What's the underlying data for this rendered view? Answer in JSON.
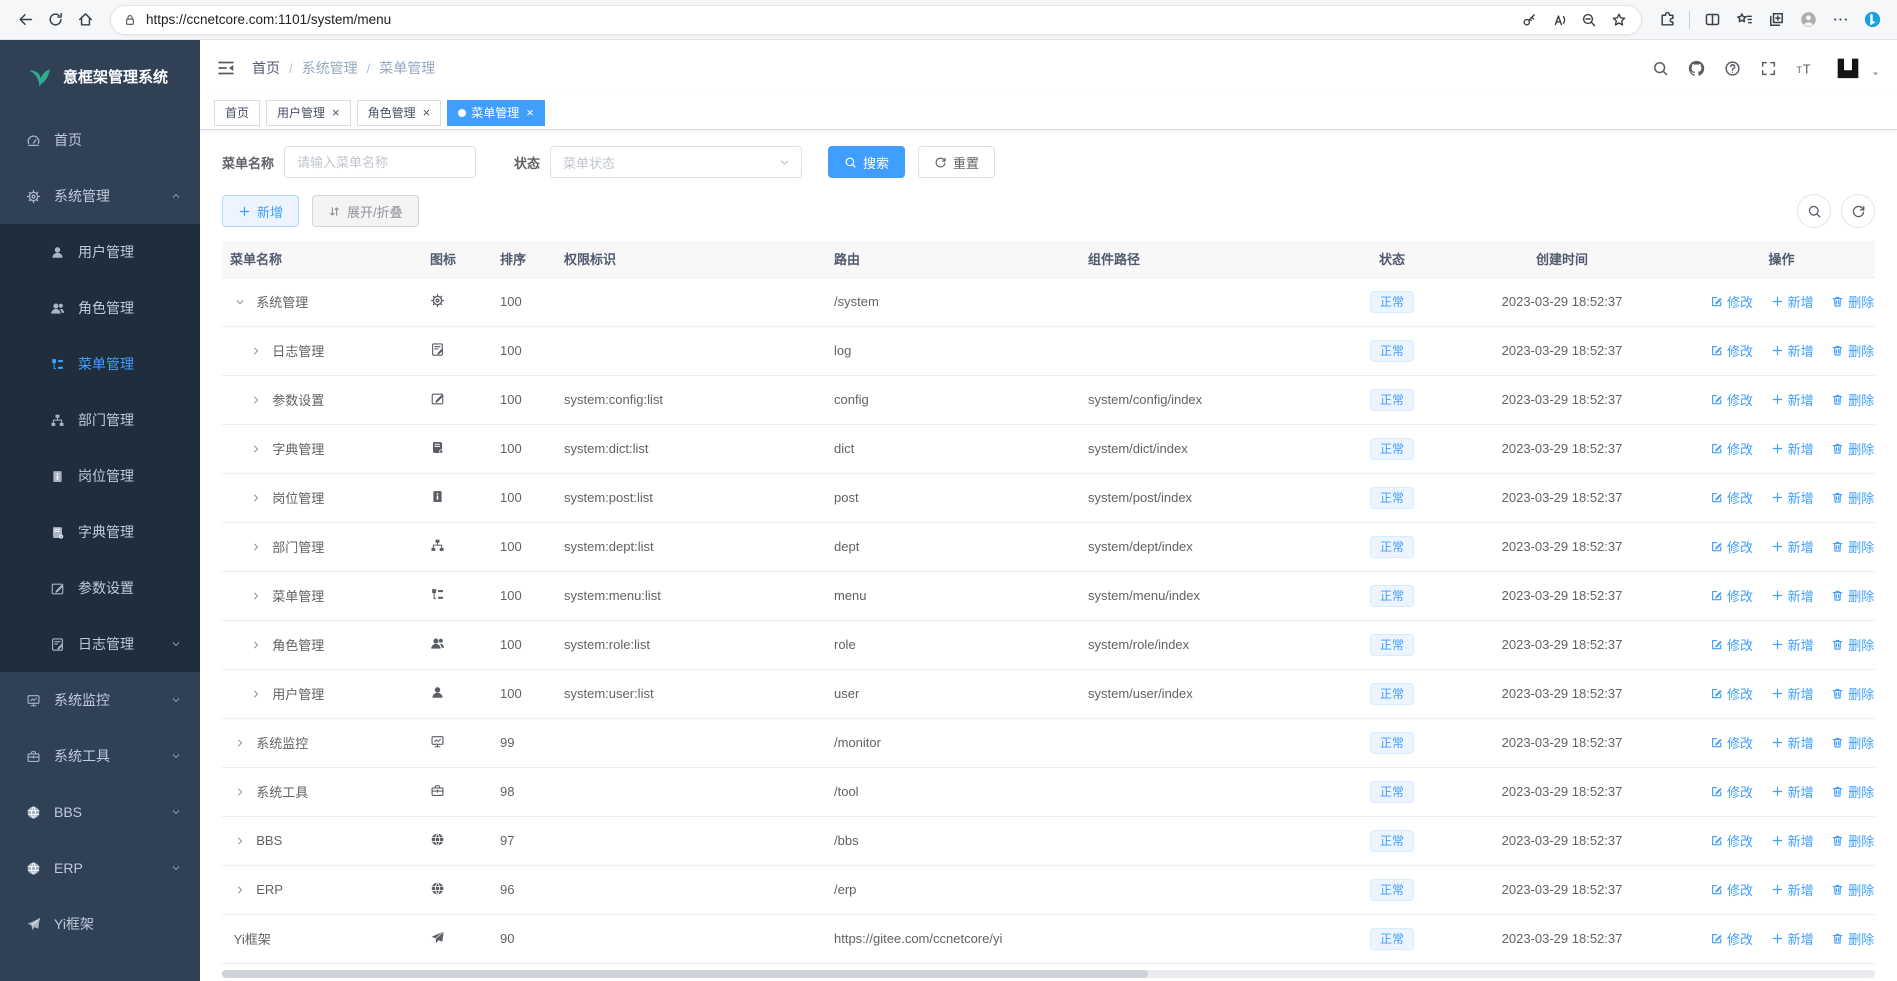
{
  "browser": {
    "url": "https://ccnetcore.com:1101/system/menu",
    "nav_icons": [
      "back",
      "reload",
      "home"
    ],
    "addr_icons": [
      "key",
      "read-aloud",
      "zoom-out",
      "favorite-add"
    ],
    "toolbar_icons": [
      "extensions",
      "divider",
      "split-screen",
      "favorites",
      "collections",
      "profile",
      "more",
      "bing"
    ]
  },
  "sidebar": {
    "title": "意框架管理系统",
    "items": [
      {
        "label": "首页",
        "icon": "dashboard",
        "level": 1,
        "caret": null,
        "active": false
      },
      {
        "label": "系统管理",
        "icon": "gear",
        "level": 1,
        "caret": "up",
        "active": false
      },
      {
        "label": "用户管理",
        "icon": "user",
        "level": 2,
        "caret": null,
        "active": false
      },
      {
        "label": "角色管理",
        "icon": "users",
        "level": 2,
        "caret": null,
        "active": false
      },
      {
        "label": "菜单管理",
        "icon": "menu",
        "level": 2,
        "caret": null,
        "active": true
      },
      {
        "label": "部门管理",
        "icon": "tree",
        "level": 2,
        "caret": null,
        "active": false
      },
      {
        "label": "岗位管理",
        "icon": "badge",
        "level": 2,
        "caret": null,
        "active": false
      },
      {
        "label": "字典管理",
        "icon": "book",
        "level": 2,
        "caret": null,
        "active": false
      },
      {
        "label": "参数设置",
        "icon": "edit",
        "level": 2,
        "caret": null,
        "active": false
      },
      {
        "label": "日志管理",
        "icon": "log",
        "level": 2,
        "caret": "down",
        "active": false
      },
      {
        "label": "系统监控",
        "icon": "monitor",
        "level": 1,
        "caret": "down",
        "active": false
      },
      {
        "label": "系统工具",
        "icon": "toolbox",
        "level": 1,
        "caret": "down",
        "active": false
      },
      {
        "label": "BBS",
        "icon": "globe",
        "level": 1,
        "caret": "down",
        "active": false
      },
      {
        "label": "ERP",
        "icon": "globe",
        "level": 1,
        "caret": "down",
        "active": false
      },
      {
        "label": "Yi框架",
        "icon": "send",
        "level": 1,
        "caret": null,
        "active": false
      }
    ]
  },
  "header": {
    "breadcrumb": [
      "首页",
      "系统管理",
      "菜单管理"
    ],
    "separator": "/",
    "action_icons": [
      "search",
      "github",
      "question",
      "fullscreen",
      "font-size"
    ]
  },
  "tabs": [
    {
      "label": "首页",
      "closable": false,
      "active": false
    },
    {
      "label": "用户管理",
      "closable": true,
      "active": false
    },
    {
      "label": "角色管理",
      "closable": true,
      "active": false
    },
    {
      "label": "菜单管理",
      "closable": true,
      "active": true
    }
  ],
  "filters": {
    "name_label": "菜单名称",
    "name_placeholder": "请输入菜单名称",
    "status_label": "状态",
    "status_placeholder": "菜单状态",
    "search_label": "搜索",
    "reset_label": "重置"
  },
  "toolbar": {
    "add_label": "新增",
    "toggle_label": "展开/折叠"
  },
  "table": {
    "columns": [
      {
        "label": "菜单名称",
        "align": "left"
      },
      {
        "label": "图标",
        "align": "left"
      },
      {
        "label": "排序",
        "align": "left"
      },
      {
        "label": "权限标识",
        "align": "left"
      },
      {
        "label": "路由",
        "align": "left"
      },
      {
        "label": "组件路径",
        "align": "left"
      },
      {
        "label": "状态",
        "align": "center"
      },
      {
        "label": "创建时间",
        "align": "center"
      },
      {
        "label": "操作",
        "align": "center"
      }
    ],
    "actions": {
      "edit": "修改",
      "add": "新增",
      "delete": "删除"
    },
    "rows": [
      {
        "name": "系统管理",
        "icon": "gear",
        "level": 0,
        "arrow": "down",
        "sort": "100",
        "perm": "",
        "route": "/system",
        "component": "",
        "status": "正常",
        "created": "2023-03-29 18:52:37"
      },
      {
        "name": "日志管理",
        "icon": "log",
        "level": 1,
        "arrow": "right",
        "sort": "100",
        "perm": "",
        "route": "log",
        "component": "",
        "status": "正常",
        "created": "2023-03-29 18:52:37"
      },
      {
        "name": "参数设置",
        "icon": "edit",
        "level": 1,
        "arrow": "right",
        "sort": "100",
        "perm": "system:config:list",
        "route": "config",
        "component": "system/config/index",
        "status": "正常",
        "created": "2023-03-29 18:52:37"
      },
      {
        "name": "字典管理",
        "icon": "book",
        "level": 1,
        "arrow": "right",
        "sort": "100",
        "perm": "system:dict:list",
        "route": "dict",
        "component": "system/dict/index",
        "status": "正常",
        "created": "2023-03-29 18:52:37"
      },
      {
        "name": "岗位管理",
        "icon": "badge",
        "level": 1,
        "arrow": "right",
        "sort": "100",
        "perm": "system:post:list",
        "route": "post",
        "component": "system/post/index",
        "status": "正常",
        "created": "2023-03-29 18:52:37"
      },
      {
        "name": "部门管理",
        "icon": "tree",
        "level": 1,
        "arrow": "right",
        "sort": "100",
        "perm": "system:dept:list",
        "route": "dept",
        "component": "system/dept/index",
        "status": "正常",
        "created": "2023-03-29 18:52:37"
      },
      {
        "name": "菜单管理",
        "icon": "menu",
        "level": 1,
        "arrow": "right",
        "sort": "100",
        "perm": "system:menu:list",
        "route": "menu",
        "component": "system/menu/index",
        "status": "正常",
        "created": "2023-03-29 18:52:37"
      },
      {
        "name": "角色管理",
        "icon": "users",
        "level": 1,
        "arrow": "right",
        "sort": "100",
        "perm": "system:role:list",
        "route": "role",
        "component": "system/role/index",
        "status": "正常",
        "created": "2023-03-29 18:52:37"
      },
      {
        "name": "用户管理",
        "icon": "user",
        "level": 1,
        "arrow": "right",
        "sort": "100",
        "perm": "system:user:list",
        "route": "user",
        "component": "system/user/index",
        "status": "正常",
        "created": "2023-03-29 18:52:37"
      },
      {
        "name": "系统监控",
        "icon": "monitor",
        "level": 0,
        "arrow": "right",
        "sort": "99",
        "perm": "",
        "route": "/monitor",
        "component": "",
        "status": "正常",
        "created": "2023-03-29 18:52:37"
      },
      {
        "name": "系统工具",
        "icon": "toolbox",
        "level": 0,
        "arrow": "right",
        "sort": "98",
        "perm": "",
        "route": "/tool",
        "component": "",
        "status": "正常",
        "created": "2023-03-29 18:52:37"
      },
      {
        "name": "BBS",
        "icon": "globe",
        "level": 0,
        "arrow": "right",
        "sort": "97",
        "perm": "",
        "route": "/bbs",
        "component": "",
        "status": "正常",
        "created": "2023-03-29 18:52:37"
      },
      {
        "name": "ERP",
        "icon": "globe",
        "level": 0,
        "arrow": "right",
        "sort": "96",
        "perm": "",
        "route": "/erp",
        "component": "",
        "status": "正常",
        "created": "2023-03-29 18:52:37"
      },
      {
        "name": "Yi框架",
        "icon": "send",
        "level": 0,
        "arrow": "none",
        "sort": "90",
        "perm": "",
        "route": "https://gitee.com/ccnetcore/yi",
        "component": "",
        "status": "正常",
        "created": "2023-03-29 18:52:37"
      }
    ]
  },
  "colors": {
    "primary": "#409eff",
    "tag_bg": "#ecf5ff",
    "tag_border": "#d9ecff",
    "sidebar_bg": "#304156",
    "submenu_bg": "#1f2d3d",
    "logo_green": "#2fae8f"
  }
}
